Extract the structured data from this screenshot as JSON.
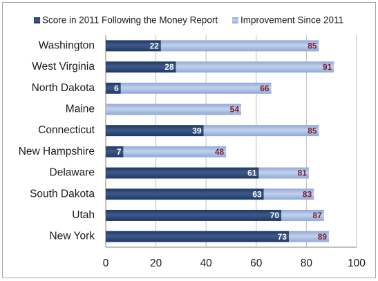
{
  "chart_data": {
    "type": "bar",
    "orientation": "horizontal",
    "stacked": true,
    "categories": [
      "Washington",
      "West Virginia",
      "North Dakota",
      "Maine",
      "Connecticut",
      "New Hampshire",
      "Delaware",
      "South Dakota",
      "Utah",
      "New York"
    ],
    "series": [
      {
        "name": "Score in 2011 Following the Money Report",
        "values": [
          22,
          28,
          6,
          0,
          39,
          7,
          61,
          63,
          70,
          73
        ],
        "labels": [
          "22",
          "28",
          "6",
          "",
          "39",
          "7",
          "61",
          "63",
          "70",
          "73"
        ]
      },
      {
        "name": "Improvement Since 2011",
        "totals": [
          85,
          91,
          66,
          54,
          85,
          48,
          81,
          83,
          87,
          89
        ],
        "labels": [
          "85",
          "91",
          "66",
          "54",
          "85",
          "48",
          "81",
          "83",
          "87",
          "89"
        ]
      }
    ],
    "xlim": [
      0,
      100
    ],
    "xticks": [
      "0",
      "20",
      "40",
      "60",
      "80",
      "100"
    ],
    "grid": true,
    "legend": "top",
    "colors": {
      "base": "#1f3864",
      "base_light": "#3e5a8a",
      "improvement": "#8fa8d6",
      "improvement_light": "#c3d1ec",
      "grid": "#bfbfbf",
      "axis": "#808080",
      "total_label": "#7a1c2e"
    }
  }
}
